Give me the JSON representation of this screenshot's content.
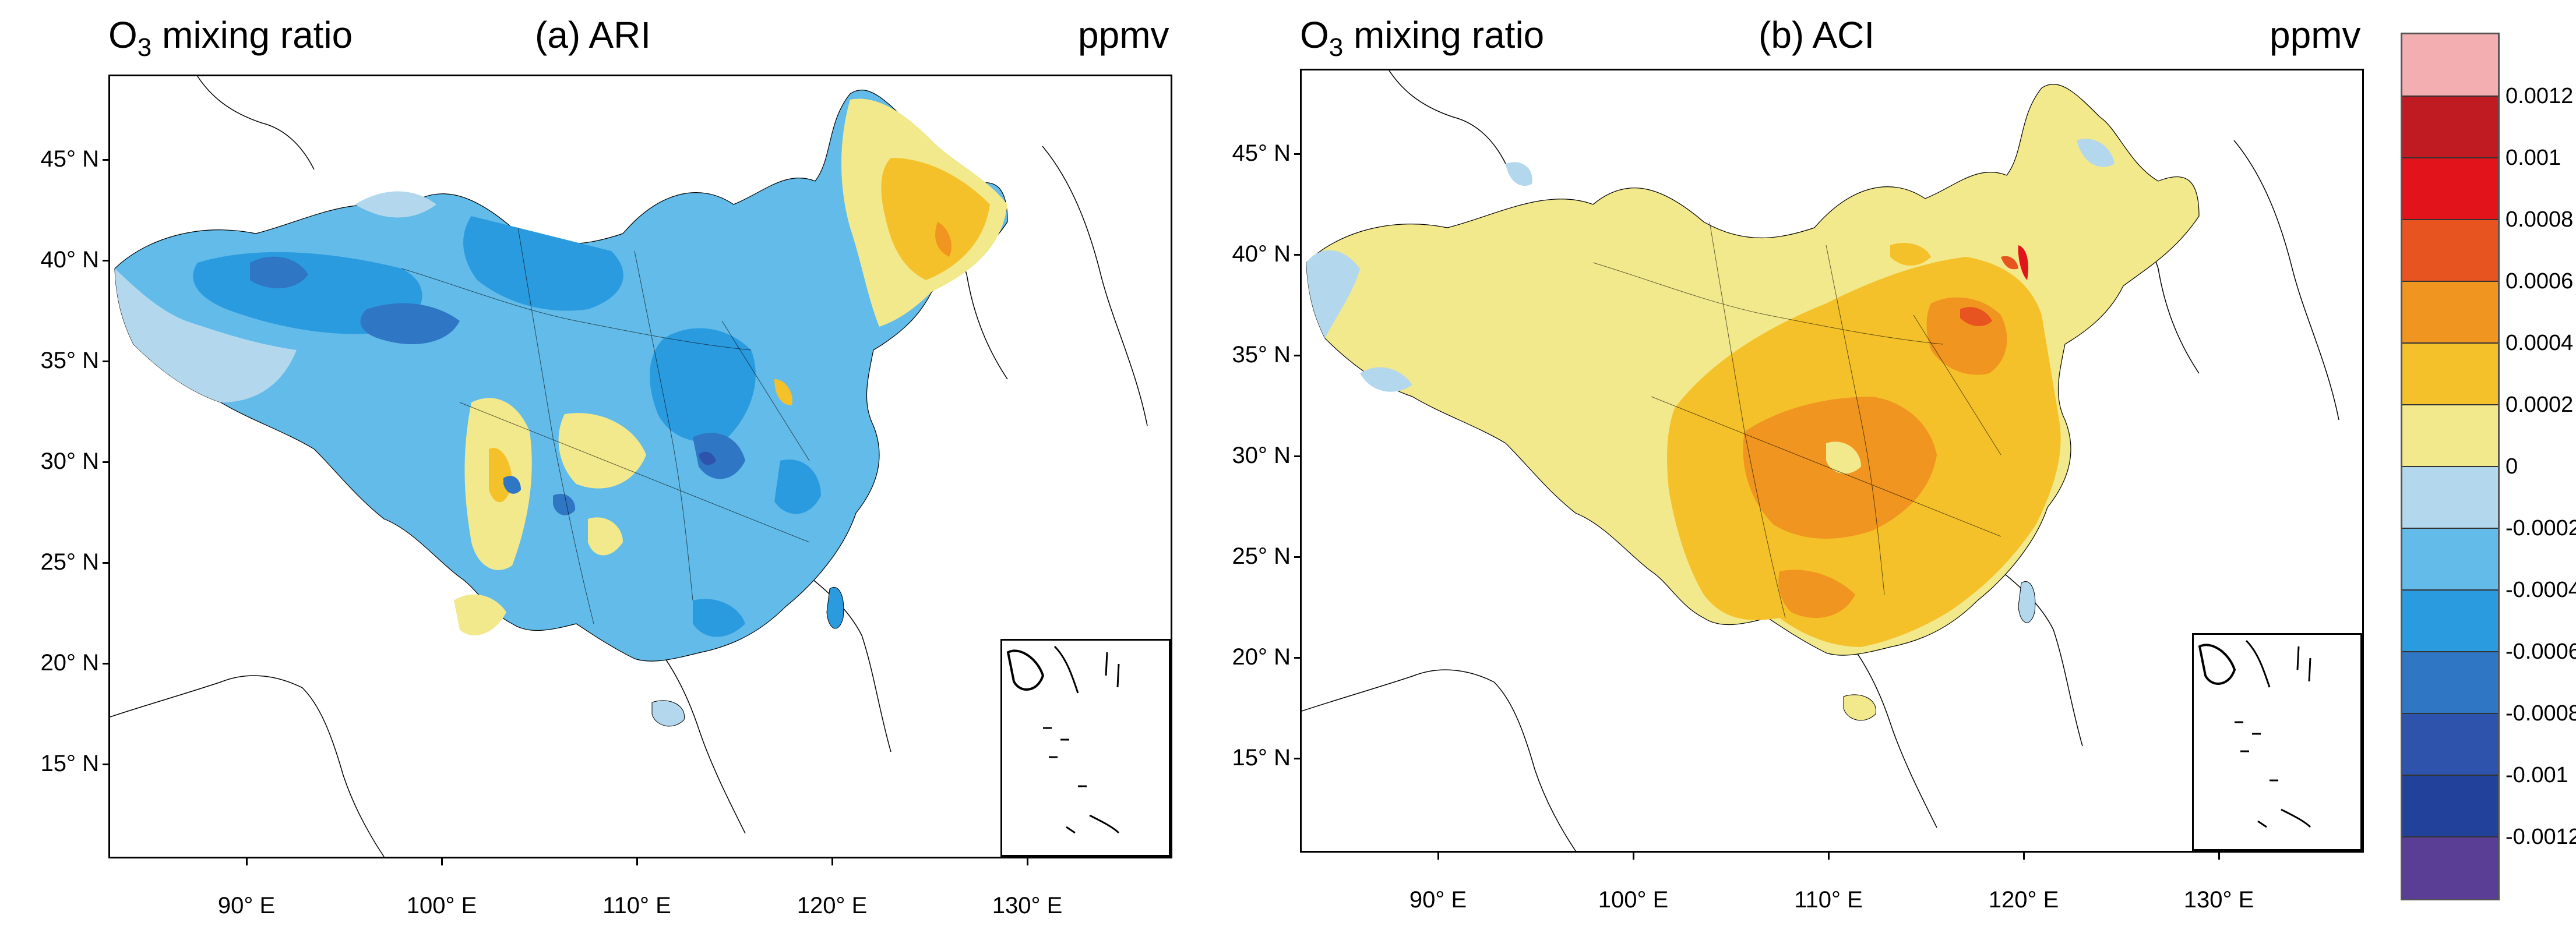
{
  "panels": [
    {
      "title": "(a) ARI",
      "quantity": "O",
      "quantity_sub": "3",
      "quantity_rest": " mixing ratio",
      "unit": "ppmv",
      "dominant_fill": "negative (blue)",
      "regions_positive": [
        "northeast",
        "Sichuan basin",
        "Yunnan south"
      ],
      "regions_most_negative": [
        "Tibetan plateau",
        "central China"
      ]
    },
    {
      "title": "(b) ACI",
      "quantity": "O",
      "quantity_sub": "3",
      "quantity_rest": " mixing ratio",
      "unit": "ppmv",
      "dominant_fill": "positive (yellow/orange)",
      "regions_positive": [
        "eastern China",
        "North China Plain",
        "south China"
      ],
      "regions_most_negative": [
        "far west",
        "northeast edge"
      ]
    }
  ],
  "axes": {
    "lat_labels": [
      "45° N",
      "40° N",
      "35° N",
      "30° N",
      "25° N",
      "20° N",
      "15° N"
    ],
    "lat_values": [
      45,
      40,
      35,
      30,
      25,
      20,
      15
    ],
    "lon_labels": [
      "90° E",
      "100° E",
      "110° E",
      "120° E",
      "130° E"
    ],
    "lon_values": [
      90,
      100,
      110,
      120,
      130
    ],
    "lat_range": [
      10,
      49
    ],
    "lon_range": [
      83,
      137
    ]
  },
  "colorbar": {
    "labels": [
      "0.0012",
      "0.001",
      "0.0008",
      "0.0006",
      "0.0004",
      "0.0002",
      "0",
      "-0.0002",
      "-0.0004",
      "-0.0006",
      "-0.0008",
      "-0.001",
      "-0.0012"
    ],
    "colors": [
      "#f2aeb0",
      "#c01a22",
      "#e3131b",
      "#e8541f",
      "#f0951f",
      "#f5c12a",
      "#f2e98c",
      "#b3d8ee",
      "#62bbe8",
      "#2b9be0",
      "#2f76c4",
      "#2e53ad",
      "#21419b",
      "#5a3d95"
    ]
  }
}
